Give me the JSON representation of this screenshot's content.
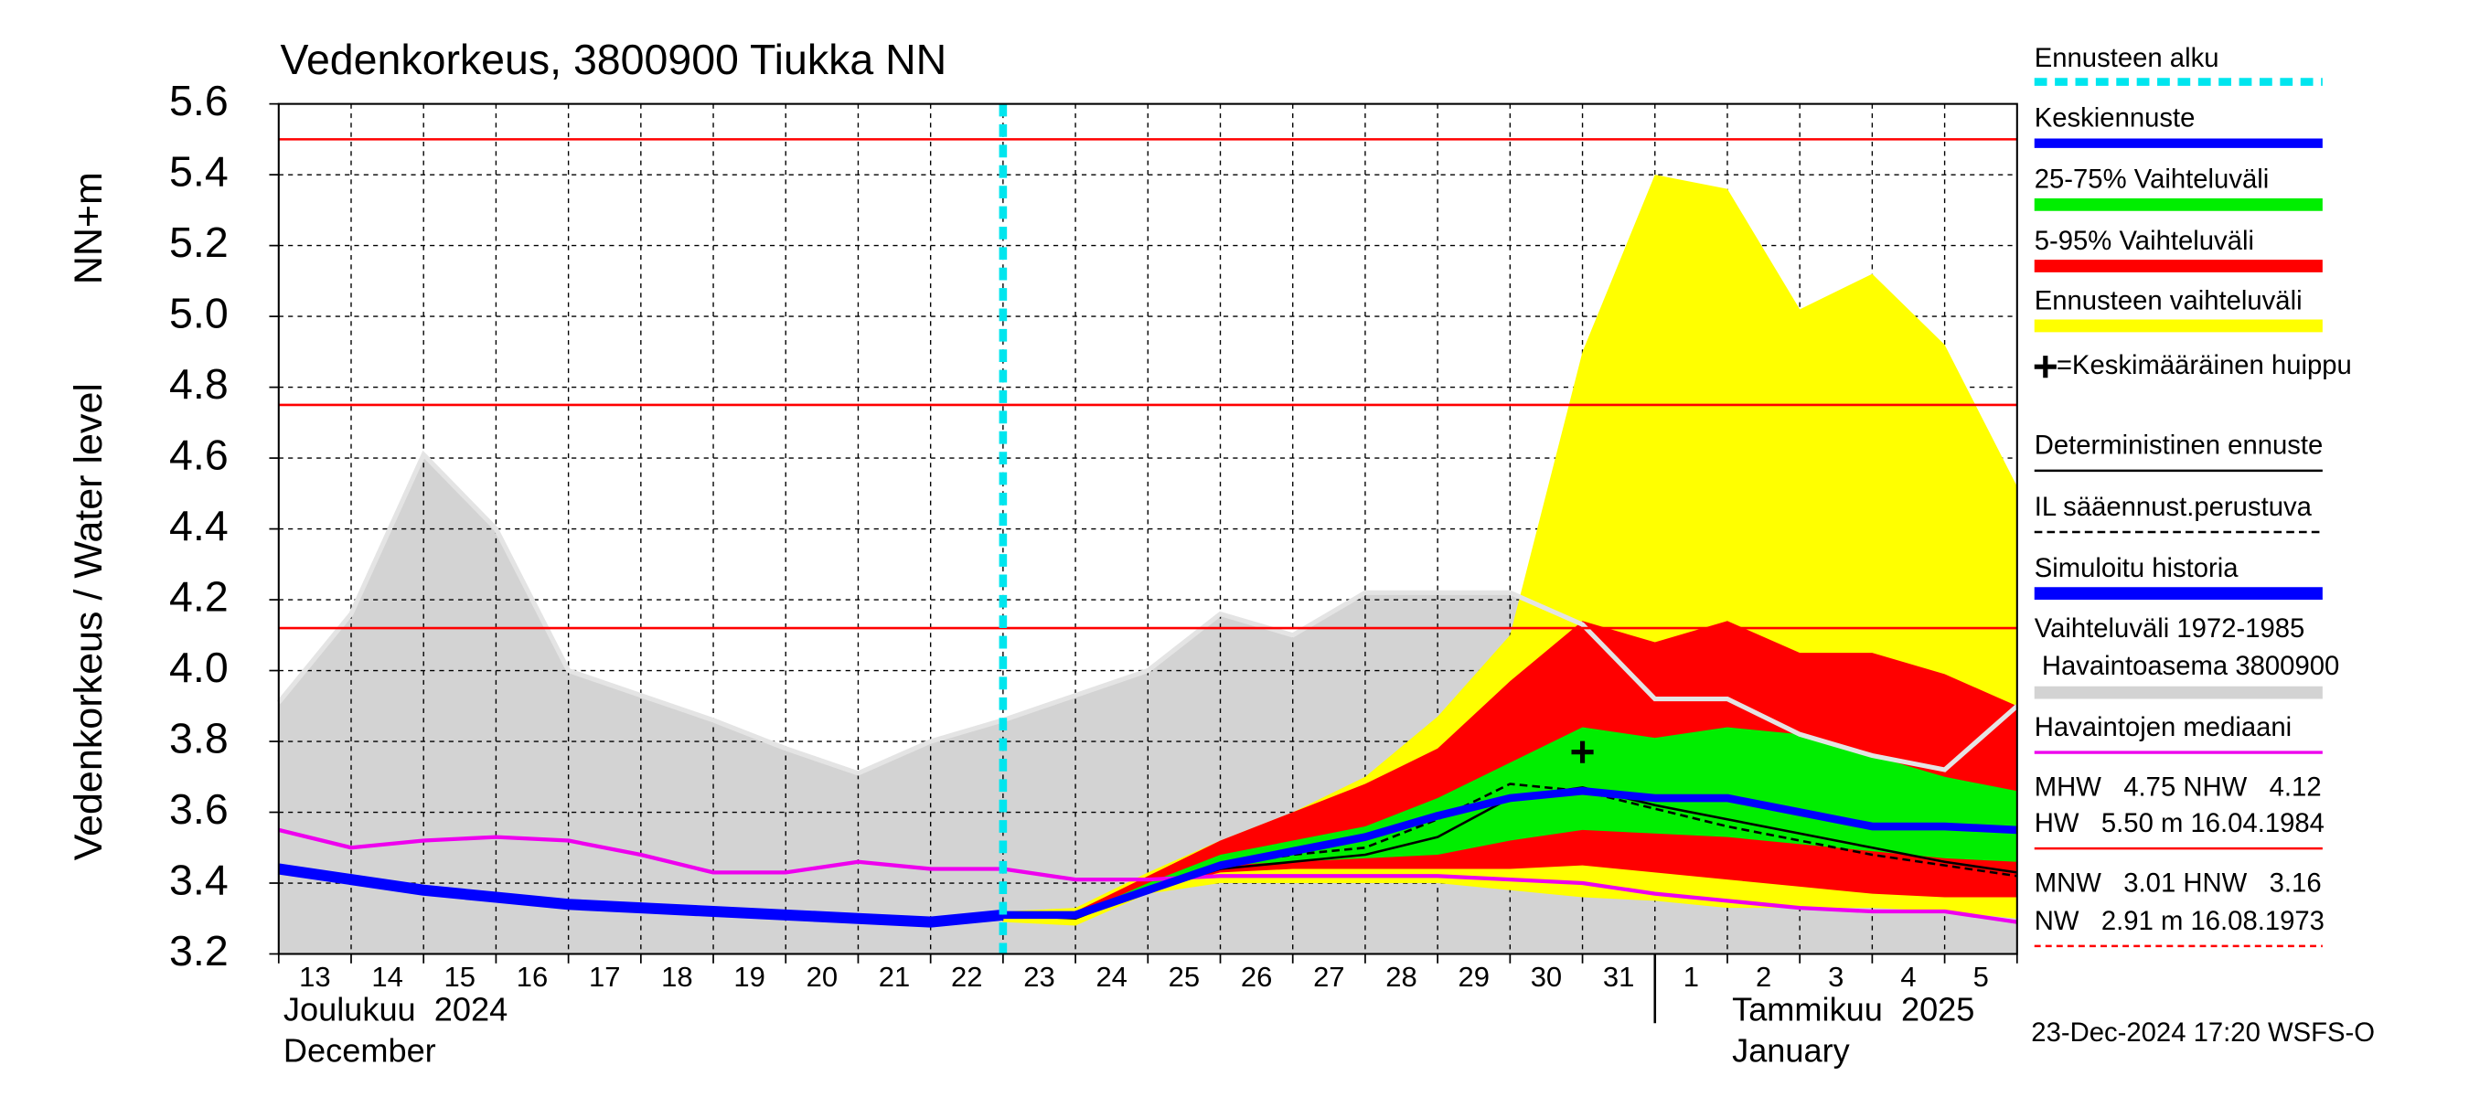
{
  "chart_data": {
    "type": "area",
    "title": "Vedenkorkeus, 3800900 Tiukka NN",
    "y_label": "Vedenkorkeus / Water level",
    "y_unit": "NN+m",
    "categories": [
      "13",
      "14",
      "15",
      "16",
      "17",
      "18",
      "19",
      "20",
      "21",
      "22",
      "23",
      "24",
      "25",
      "26",
      "27",
      "28",
      "29",
      "30",
      "31",
      "1",
      "2",
      "3",
      "4",
      "5",
      null
    ],
    "month_labels": [
      [
        "Joulukuu  2024",
        "December"
      ],
      [
        "Tammikuu  2025",
        "January"
      ]
    ],
    "ylim": [
      3.2,
      5.6
    ],
    "yticks": [
      3.2,
      3.4,
      3.6,
      3.8,
      {
        "value": 4,
        "label": "4.0"
      },
      4.2,
      4.4,
      4.6,
      4.8,
      {
        "value": 5,
        "label": "5.0"
      },
      5.2,
      5.4,
      5.6
    ],
    "grid": true,
    "forecast_start": {
      "name": "Ennusteen alku",
      "color": "#00e5ee",
      "x": 10
    },
    "peak": {
      "name": "=Keskimääräinen huippu",
      "x": 18,
      "value": 3.77
    },
    "reference_lines": {
      "color": "#ff0000",
      "values": [
        5.5,
        4.75,
        4.12
      ]
    },
    "series": [
      {
        "name": "Keskiennuste",
        "kind": "line",
        "color": "#0000ff",
        "values": [
          null,
          null,
          null,
          null,
          null,
          null,
          null,
          null,
          null,
          null,
          3.31,
          3.31,
          3.38,
          3.45,
          3.49,
          3.53,
          3.59,
          3.64,
          3.66,
          3.64,
          3.64,
          3.6,
          3.56,
          3.56,
          3.55
        ]
      },
      {
        "name": "25-75% Vaihteluväli",
        "kind": "band",
        "color": "#00ee00",
        "upper": [
          null,
          null,
          null,
          null,
          null,
          null,
          null,
          null,
          null,
          null,
          3.31,
          3.31,
          3.4,
          3.48,
          3.52,
          3.56,
          3.64,
          3.74,
          3.84,
          3.81,
          3.84,
          3.82,
          3.76,
          3.7,
          3.66
        ],
        "lower": [
          null,
          null,
          null,
          null,
          null,
          null,
          null,
          null,
          null,
          null,
          3.3,
          3.3,
          3.38,
          3.45,
          3.46,
          3.47,
          3.48,
          3.52,
          3.55,
          3.54,
          3.53,
          3.51,
          3.49,
          3.47,
          3.46
        ]
      },
      {
        "name": "5-95% Vaihteluväli",
        "kind": "band",
        "color": "#ff0000",
        "upper": [
          null,
          null,
          null,
          null,
          null,
          null,
          null,
          null,
          null,
          null,
          3.31,
          3.32,
          3.42,
          3.52,
          3.6,
          3.68,
          3.78,
          3.97,
          4.14,
          4.08,
          4.14,
          4.05,
          4.05,
          3.99,
          3.9
        ],
        "lower": [
          null,
          null,
          null,
          null,
          null,
          null,
          null,
          null,
          null,
          null,
          3.3,
          3.3,
          3.38,
          3.43,
          3.44,
          3.44,
          3.44,
          3.44,
          3.45,
          3.43,
          3.41,
          3.39,
          3.37,
          3.36,
          3.36
        ]
      },
      {
        "name": "Ennusteen vaihteluväli",
        "kind": "band",
        "color": "#ffff00",
        "upper": [
          null,
          null,
          null,
          null,
          null,
          null,
          null,
          null,
          null,
          null,
          3.32,
          3.33,
          3.43,
          3.52,
          3.6,
          3.7,
          3.87,
          4.1,
          4.9,
          5.4,
          5.36,
          5.02,
          5.12,
          4.92,
          4.52
        ],
        "lower": [
          null,
          null,
          null,
          null,
          null,
          null,
          null,
          null,
          null,
          null,
          3.29,
          3.28,
          3.37,
          3.4,
          3.4,
          3.4,
          3.4,
          3.38,
          3.36,
          3.35,
          3.33,
          3.33,
          3.33,
          3.32,
          3.3
        ]
      },
      {
        "name": "Deterministinen ennuste",
        "kind": "line",
        "color": "#000000",
        "values": [
          null,
          null,
          null,
          null,
          null,
          null,
          null,
          null,
          null,
          null,
          3.31,
          3.3,
          3.38,
          3.44,
          3.46,
          3.48,
          3.53,
          3.64,
          3.67,
          3.62,
          3.58,
          3.54,
          3.5,
          3.46,
          3.43
        ]
      },
      {
        "name": "IL sääennust.perustuva",
        "kind": "line",
        "dashed": true,
        "color": "#000000",
        "values": [
          null,
          null,
          null,
          null,
          null,
          null,
          null,
          null,
          null,
          null,
          null,
          null,
          3.38,
          3.45,
          3.48,
          3.5,
          3.58,
          3.68,
          3.66,
          3.61,
          3.56,
          3.52,
          3.48,
          3.45,
          3.42
        ]
      },
      {
        "name": "Simuloitu historia",
        "kind": "line",
        "color": "#0000ff",
        "values": [
          3.44,
          3.41,
          3.38,
          3.36,
          3.34,
          3.33,
          3.32,
          3.31,
          3.3,
          3.29,
          3.31,
          null,
          null,
          null,
          null,
          null,
          null,
          null,
          null,
          null,
          null,
          null,
          null,
          null,
          null
        ]
      },
      {
        "name": "Vaihteluväli 1972-1985\n Havaintoasema 3800900",
        "kind": "area",
        "color": "#d3d3d3",
        "values": [
          3.91,
          4.16,
          4.61,
          4.4,
          4.0,
          3.93,
          3.86,
          3.78,
          3.71,
          3.8,
          3.86,
          3.93,
          4.0,
          4.16,
          4.1,
          4.22,
          4.22,
          4.22,
          4.13,
          3.92,
          3.92,
          3.82,
          3.76,
          3.72,
          3.9
        ]
      },
      {
        "name": "Havaintojen mediaani",
        "kind": "line",
        "color": "#ee00ee",
        "values": [
          3.55,
          3.5,
          3.52,
          3.53,
          3.52,
          3.48,
          3.43,
          3.43,
          3.46,
          3.44,
          3.44,
          3.41,
          3.41,
          3.42,
          3.42,
          3.42,
          3.42,
          3.41,
          3.4,
          3.37,
          3.35,
          3.33,
          3.32,
          3.32,
          3.29
        ]
      }
    ],
    "stats": [
      "MHW   4.75 NHW   4.12",
      "HW   5.50 m 16.04.1984",
      "MNW   3.01 HNW   3.16",
      "NW   2.91 m 16.08.1973"
    ],
    "footer": "23-Dec-2024 17:20 WSFS-O"
  }
}
